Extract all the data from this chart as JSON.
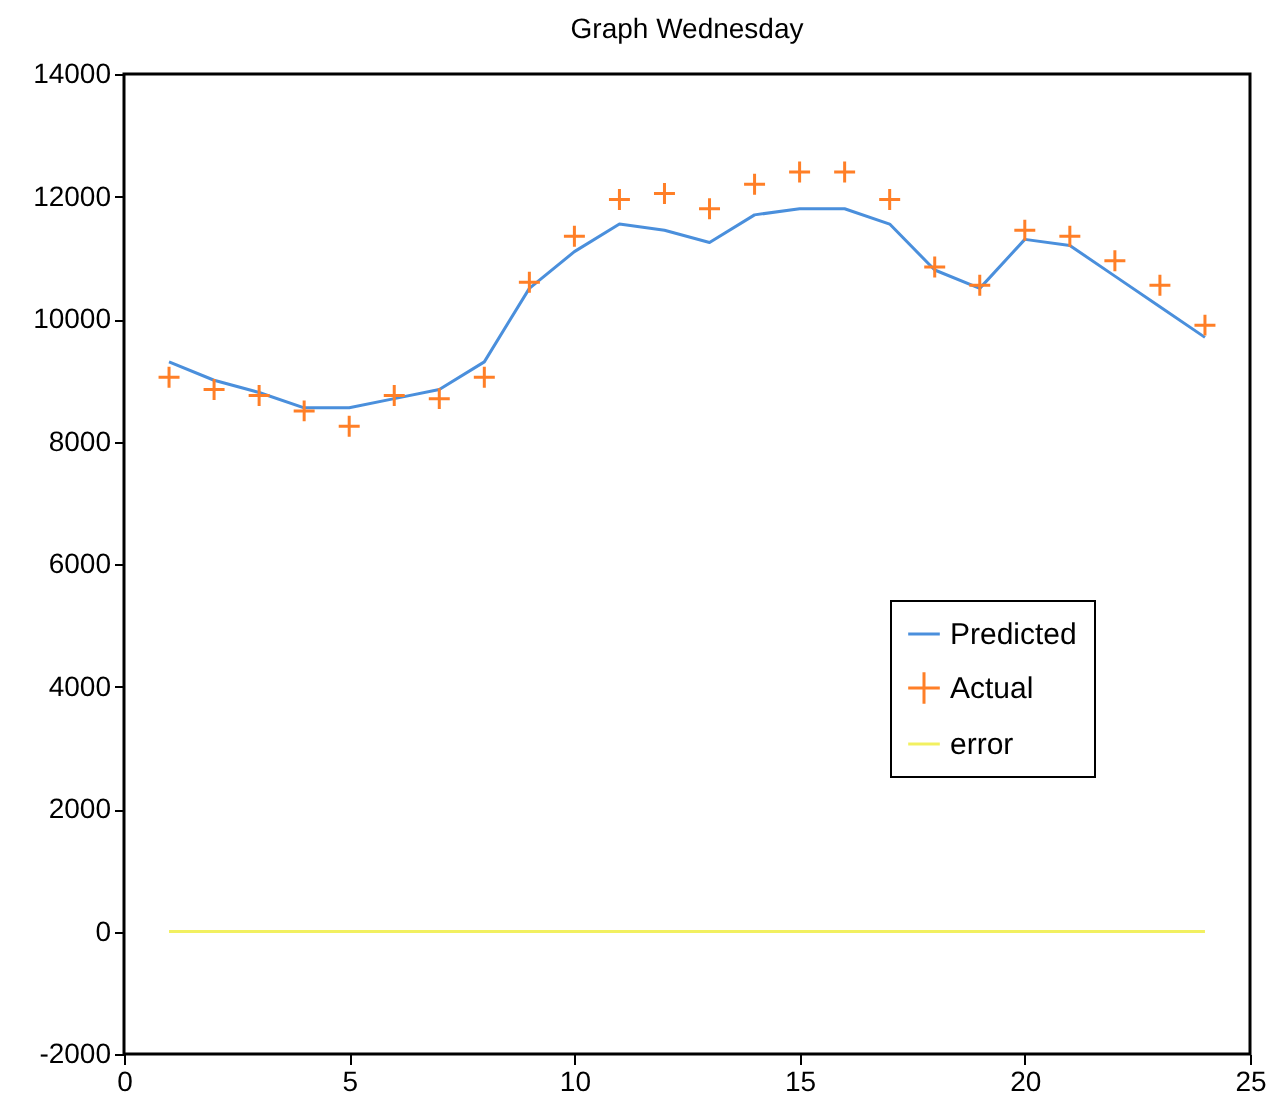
{
  "chart_data": {
    "type": "line",
    "title": "Graph Wednesday",
    "x": [
      1,
      2,
      3,
      4,
      5,
      6,
      7,
      8,
      9,
      10,
      11,
      12,
      13,
      14,
      15,
      16,
      17,
      18,
      19,
      20,
      21,
      22,
      23,
      24
    ],
    "series": [
      {
        "name": "Predicted",
        "type": "line",
        "color": "#4a8fdc",
        "marker": "none",
        "values": [
          9300,
          9000,
          8800,
          8550,
          8550,
          8700,
          8850,
          9300,
          10500,
          11100,
          11550,
          11450,
          11250,
          11700,
          11800,
          11800,
          11550,
          10800,
          10500,
          11300,
          11200,
          10700,
          10200,
          9700
        ]
      },
      {
        "name": "Actual",
        "type": "scatter",
        "color": "#ff7f27",
        "marker": "cross",
        "values": [
          9050,
          8850,
          8750,
          8500,
          8250,
          8750,
          8700,
          9050,
          10600,
          11350,
          11950,
          12050,
          11800,
          12200,
          12400,
          12400,
          11950,
          10850,
          10550,
          11450,
          11350,
          10950,
          10550,
          9900
        ]
      },
      {
        "name": "error",
        "type": "line",
        "color": "#f2f060",
        "marker": "none",
        "values": [
          0,
          0,
          0,
          0,
          0,
          0,
          0,
          0,
          0,
          0,
          0,
          0,
          0,
          0,
          0,
          0,
          0,
          0,
          0,
          0,
          0,
          0,
          0,
          0
        ]
      }
    ],
    "xlim": [
      0,
      25
    ],
    "xticks": [
      0,
      5,
      10,
      15,
      20,
      25
    ],
    "ylim": [
      -2000,
      14000
    ],
    "yticks": [
      -2000,
      0,
      2000,
      4000,
      6000,
      8000,
      10000,
      12000,
      14000
    ],
    "grid": false,
    "legend": "bottom right"
  }
}
